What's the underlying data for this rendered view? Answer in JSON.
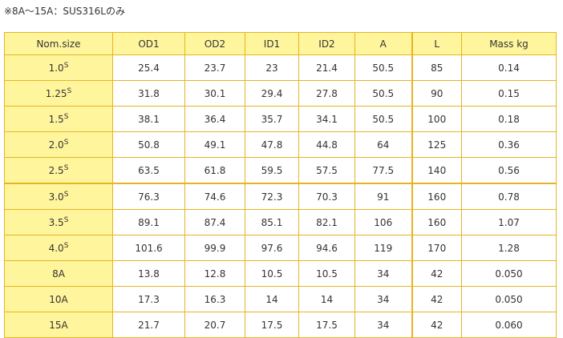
{
  "note": "※8A～15A：SUS316Lのみ",
  "table": {
    "header": [
      "Nom.size",
      "OD1",
      "OD2",
      "ID1",
      "ID2",
      "A",
      "L",
      "Mass kg"
    ],
    "rows": [
      [
        {
          "text": "1.0",
          "sup": "S"
        },
        "25.4",
        "23.7",
        "23",
        "21.4",
        "50.5",
        "85",
        "0.14"
      ],
      [
        {
          "text": "1.25",
          "sup": "S"
        },
        "31.8",
        "30.1",
        "29.4",
        "27.8",
        "50.5",
        "90",
        "0.15"
      ],
      [
        {
          "text": "1.5",
          "sup": "S"
        },
        "38.1",
        "36.4",
        "35.7",
        "34.1",
        "50.5",
        "100",
        "0.18"
      ],
      [
        {
          "text": "2.0",
          "sup": "S"
        },
        "50.8",
        "49.1",
        "47.8",
        "44.8",
        "64",
        "125",
        "0.36"
      ],
      [
        {
          "text": "2.5",
          "sup": "S"
        },
        "63.5",
        "61.8",
        "59.5",
        "57.5",
        "77.5",
        "140",
        "0.56"
      ],
      [
        {
          "text": "3.0",
          "sup": "S"
        },
        "76.3",
        "74.6",
        "72.3",
        "70.3",
        "91",
        "160",
        "0.78"
      ],
      [
        {
          "text": "3.5",
          "sup": "S"
        },
        "89.1",
        "87.4",
        "85.1",
        "82.1",
        "106",
        "160",
        "1.07"
      ],
      [
        {
          "text": "4.0",
          "sup": "S"
        },
        "101.6",
        "99.9",
        "97.6",
        "94.6",
        "119",
        "170",
        "1.28"
      ],
      [
        {
          "text": "8A"
        },
        "13.8",
        "12.8",
        "10.5",
        "10.5",
        "34",
        "42",
        "0.050"
      ],
      [
        {
          "text": "10A"
        },
        "17.3",
        "16.3",
        "14",
        "14",
        "34",
        "42",
        "0.050"
      ],
      [
        {
          "text": "15A"
        },
        "21.7",
        "20.7",
        "17.5",
        "17.5",
        "34",
        "42",
        "0.060"
      ]
    ]
  }
}
